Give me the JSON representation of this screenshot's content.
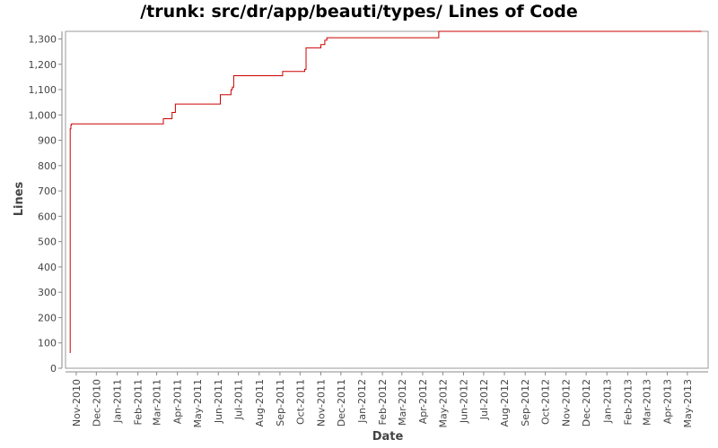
{
  "chart_data": {
    "type": "line",
    "title": "/trunk: src/dr/app/beauti/types/ Lines of Code",
    "xlabel": "Date",
    "ylabel": "Lines",
    "ylim": [
      0,
      1330
    ],
    "xlim": [
      "2010-10-16",
      "2013-06-01"
    ],
    "grid": false,
    "legend": "none",
    "colors": {
      "line": "#cc0000",
      "axis": "#888888",
      "frame": "#999999",
      "background": "#ffffff"
    },
    "y_ticks": [
      0,
      100,
      200,
      300,
      400,
      500,
      600,
      700,
      800,
      900,
      1000,
      1100,
      1200,
      1300
    ],
    "y_tick_labels": [
      "0",
      "100",
      "200",
      "300",
      "400",
      "500",
      "600",
      "700",
      "800",
      "900",
      "1,000",
      "1,100",
      "1,200",
      "1,300"
    ],
    "x_ticks": [
      "2010-11-01",
      "2010-12-01",
      "2011-01-01",
      "2011-02-01",
      "2011-03-01",
      "2011-04-01",
      "2011-05-01",
      "2011-06-01",
      "2011-07-01",
      "2011-08-01",
      "2011-09-01",
      "2011-10-01",
      "2011-11-01",
      "2011-12-01",
      "2012-01-01",
      "2012-02-01",
      "2012-03-01",
      "2012-04-01",
      "2012-05-01",
      "2012-06-01",
      "2012-07-01",
      "2012-08-01",
      "2012-09-01",
      "2012-10-01",
      "2012-11-01",
      "2012-12-01",
      "2013-01-01",
      "2013-02-01",
      "2013-03-01",
      "2013-04-01",
      "2013-05-01"
    ],
    "x_tick_labels": [
      "Nov-2010",
      "Dec-2010",
      "Jan-2011",
      "Feb-2011",
      "Mar-2011",
      "Apr-2011",
      "May-2011",
      "Jun-2011",
      "Jul-2011",
      "Aug-2011",
      "Sep-2011",
      "Oct-2011",
      "Nov-2011",
      "Dec-2011",
      "Jan-2012",
      "Feb-2012",
      "Mar-2012",
      "Apr-2012",
      "May-2012",
      "Jun-2012",
      "Jul-2012",
      "Aug-2012",
      "Sep-2012",
      "Oct-2012",
      "Nov-2012",
      "Dec-2012",
      "Jan-2013",
      "Feb-2013",
      "Mar-2013",
      "Apr-2013",
      "May-2013"
    ],
    "series": [
      {
        "step": true,
        "points": [
          [
            "2010-10-23",
            60
          ],
          [
            "2010-10-23",
            945
          ],
          [
            "2010-10-24",
            960
          ],
          [
            "2010-10-25",
            965
          ],
          [
            "2011-03-11",
            985
          ],
          [
            "2011-03-24",
            1010
          ],
          [
            "2011-03-29",
            1043
          ],
          [
            "2011-06-04",
            1080
          ],
          [
            "2011-06-20",
            1100
          ],
          [
            "2011-06-22",
            1110
          ],
          [
            "2011-06-24",
            1155
          ],
          [
            "2011-09-05",
            1172
          ],
          [
            "2011-10-08",
            1180
          ],
          [
            "2011-10-10",
            1265
          ],
          [
            "2011-11-01",
            1278
          ],
          [
            "2011-11-07",
            1295
          ],
          [
            "2011-11-10",
            1305
          ],
          [
            "2012-04-24",
            1305
          ],
          [
            "2012-04-25",
            1330
          ],
          [
            "2013-05-22",
            1330
          ]
        ]
      }
    ]
  }
}
